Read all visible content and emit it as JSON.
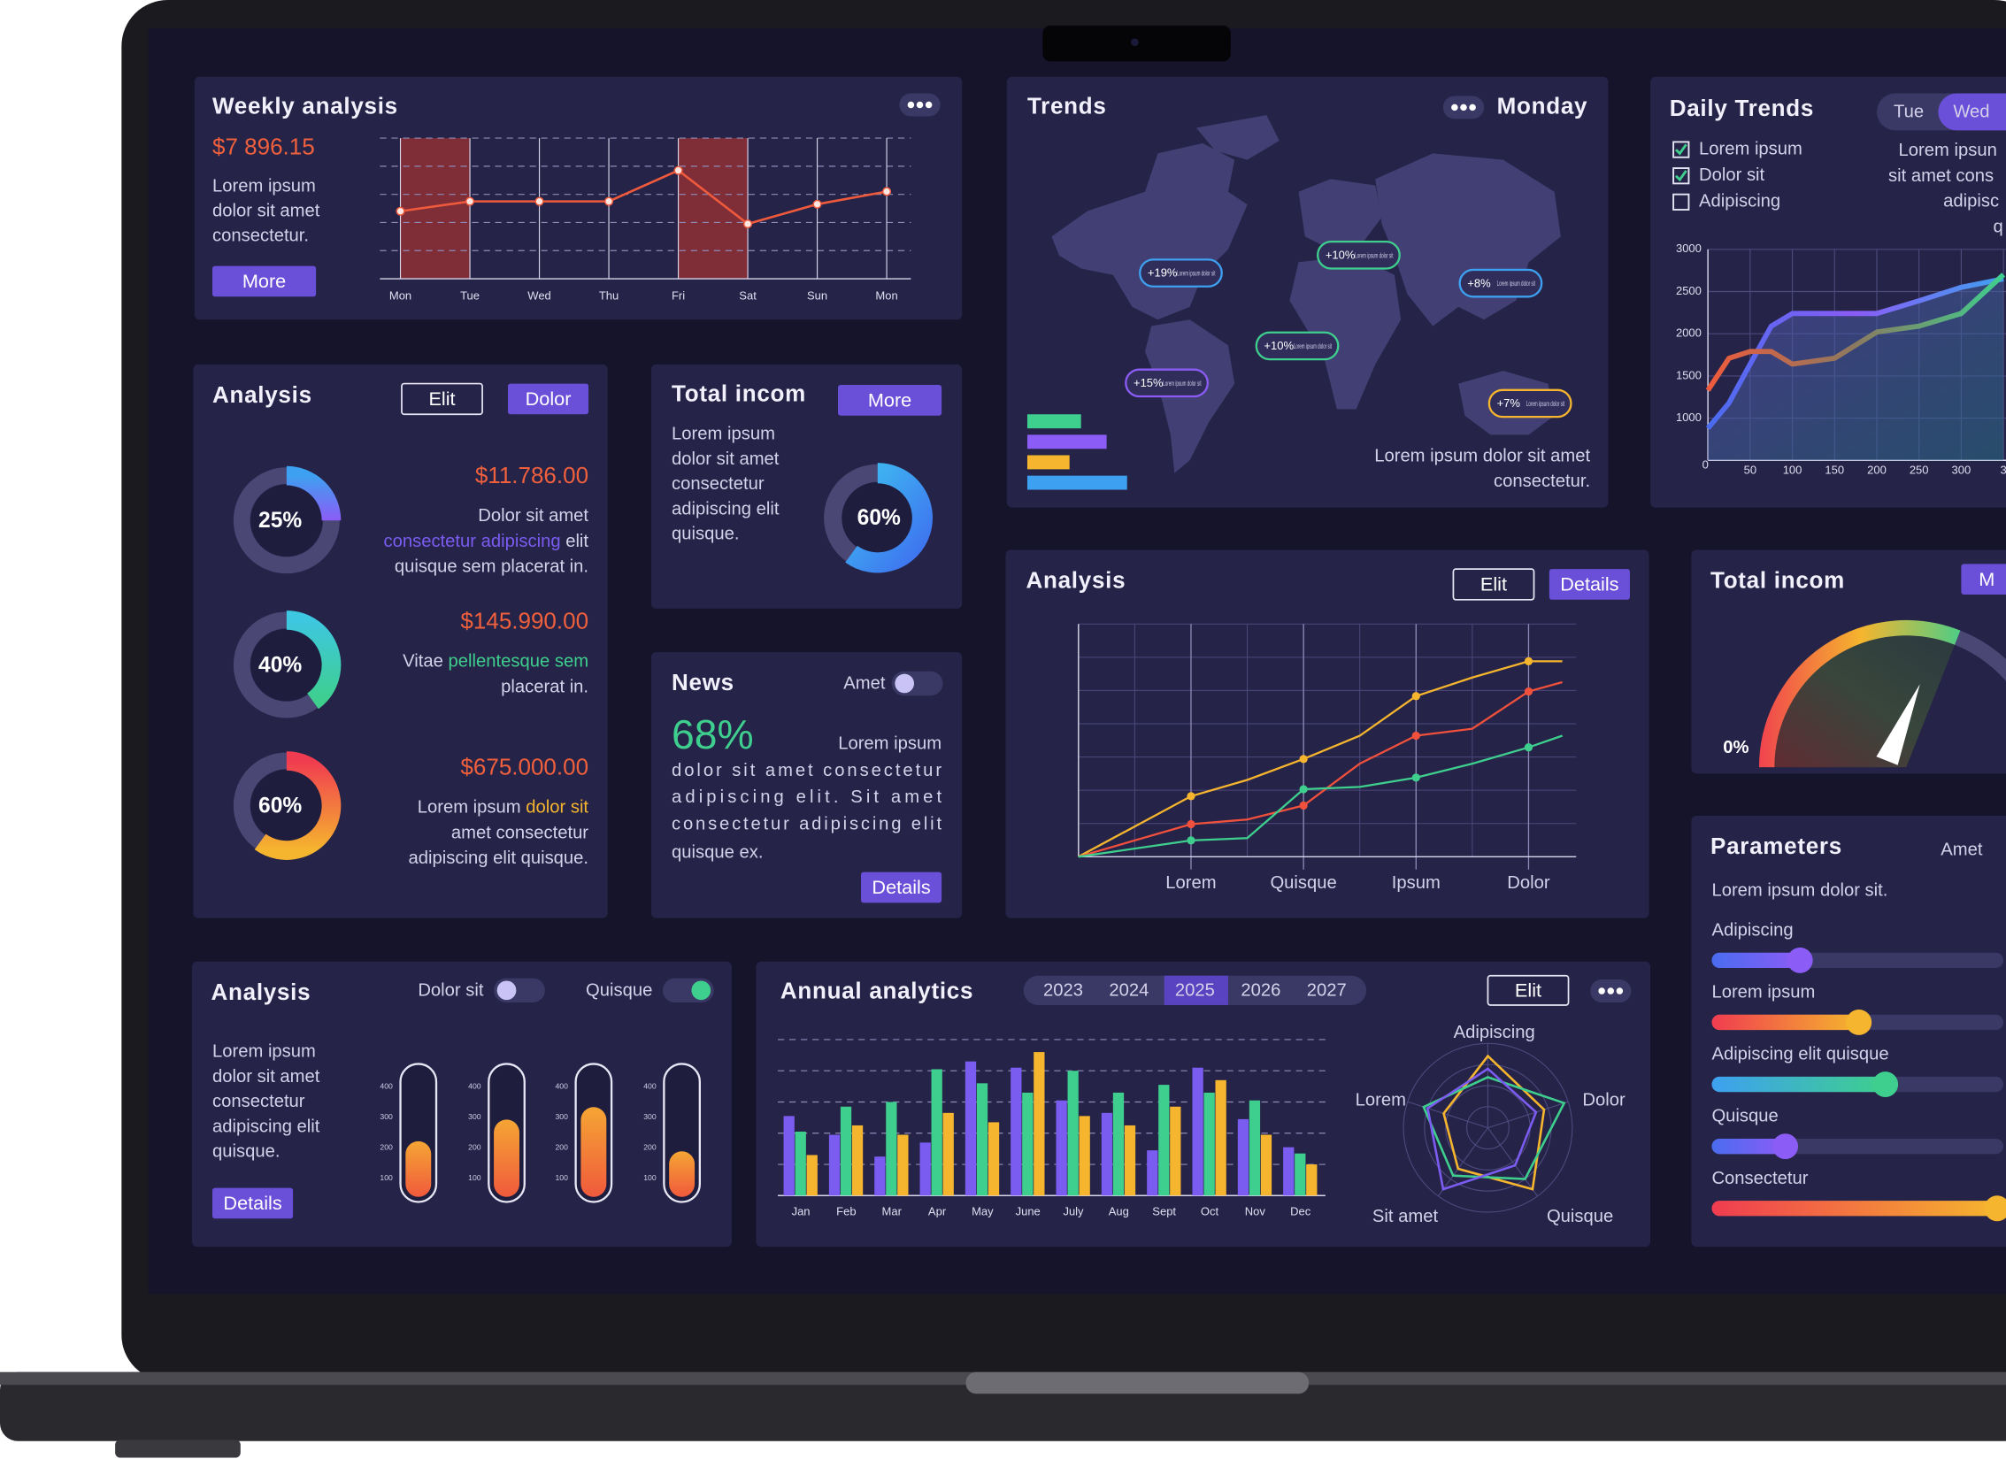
{
  "weekly": {
    "title": "Weekly analysis",
    "amount": "$7 896.15",
    "lines": [
      "Lorem ipsum",
      "dolor sit amet",
      "consectetur."
    ],
    "button": "More",
    "chart": {
      "type": "line",
      "categories": [
        "Mon",
        "Tue",
        "Wed",
        "Thu",
        "Fri",
        "Sat",
        "Sun",
        "Mon"
      ],
      "values": [
        48,
        55,
        55,
        55,
        77,
        39,
        53,
        62
      ],
      "color": "#f05a3c",
      "ylim": [
        0,
        100
      ],
      "yticks": [
        20,
        40,
        60,
        80,
        100
      ],
      "grid": true
    }
  },
  "analysis": {
    "title": "Analysis",
    "buttons": [
      "Elit",
      "Dolor"
    ],
    "chart": {
      "type": "donut",
      "values": [
        25,
        40,
        60
      ],
      "value_labels": [
        "25%",
        "40%",
        "60%"
      ],
      "colors": [
        [
          "#3ea0f0",
          "#8b5cf6"
        ],
        [
          "#3ec7e0",
          "#3ecf8e"
        ],
        [
          "#f03c50",
          "#f5b52e"
        ]
      ]
    },
    "items": [
      {
        "amount": "$11.786.00",
        "lines": [
          [
            "Dolor sit amet"
          ],
          [
            {
              "text": "consectetur adipiscing",
              "color": "#7b5cf0"
            },
            " elit"
          ],
          [
            "quisque sem placerat in."
          ]
        ]
      },
      {
        "amount": "$145.990.00",
        "lines": [
          [
            "Vitae ",
            {
              "text": "pellentesque sem",
              "color": "#3ecf8e"
            }
          ],
          [
            "placerat in."
          ]
        ]
      },
      {
        "amount": "$675.000.00",
        "lines": [
          [
            "Lorem ipsum ",
            {
              "text": "dolor sit",
              "color": "#f5b52e"
            }
          ],
          [
            "amet consectetur"
          ],
          [
            "adipiscing elit quisque."
          ]
        ]
      }
    ]
  },
  "total": {
    "title": "Total incom",
    "button": "More",
    "lines": [
      "Lorem ipsum",
      "dolor sit amet",
      "consectetur",
      "adipiscing elit",
      "quisque."
    ],
    "chart": {
      "type": "donut",
      "value": 60,
      "value_label": "60%",
      "colors": [
        "#3ec0f0",
        "#3e6ff0"
      ]
    }
  },
  "news": {
    "title": "News",
    "toggle": {
      "label": "Amet",
      "on": false
    },
    "stat": "68%",
    "lines": [
      "Lorem ipsum",
      "dolor sit amet consectetur",
      "adipiscing elit. Sit amet",
      "consectetur adipiscing elit",
      "quisque ex."
    ],
    "button": "Details"
  },
  "trends": {
    "title": "Trends",
    "day": "Monday",
    "tags": [
      {
        "label": "+19%",
        "text": "Lorem ipsum dolor sit",
        "color": "#3ea0f0"
      },
      {
        "label": "+10%",
        "text": "Lorem ipsum dolor sit",
        "color": "#3ecf8e"
      },
      {
        "label": "+8%",
        "text": "Lorem ipsum dolor sit",
        "color": "#3ea0f0"
      },
      {
        "label": "+10%",
        "text": "Lorem ipsum dolor sit",
        "color": "#3ecf8e"
      },
      {
        "label": "+15%",
        "text": "Lorem ipsum dolor sit",
        "color": "#8b5cf6"
      },
      {
        "label": "+7%",
        "text": "Lorem ipsum dolor sit",
        "color": "#f5b52e"
      }
    ],
    "bars": {
      "type": "bar",
      "values": [
        42,
        62,
        33,
        78
      ],
      "colors": [
        "#3ecf8e",
        "#8b5cf6",
        "#f5b52e",
        "#3ea0f0"
      ],
      "xlim": [
        0,
        80
      ]
    },
    "caption": [
      "Lorem ipsum dolor sit amet",
      "consectetur."
    ]
  },
  "daily": {
    "title": "Daily Trends",
    "tabs": [
      "Tue",
      "Wed"
    ],
    "active_tab": 1,
    "checks": [
      {
        "label": "Lorem ipsum",
        "checked": true
      },
      {
        "label": "Dolor sit",
        "checked": true
      },
      {
        "label": "Adipiscing",
        "checked": false
      }
    ],
    "side_text": [
      "Lorem ipsun",
      "sit amet cons",
      "adipisc",
      "q"
    ],
    "chart": {
      "type": "line",
      "origin": "0",
      "x": [
        0,
        25,
        50,
        75,
        100,
        150,
        200,
        250,
        300,
        350
      ],
      "xlim": [
        0,
        350
      ],
      "ylim": [
        500,
        3000
      ],
      "xticks": [
        50,
        100,
        150,
        200,
        250,
        300,
        {
          "value": 350,
          "label": "3"
        }
      ],
      "yticks": [
        1000,
        1500,
        2000,
        2500,
        3000
      ],
      "grid": true,
      "series": [
        {
          "color": "#4a6cf0",
          "values": [
            880,
            1180,
            1640,
            2090,
            2240,
            2240,
            2240,
            2390,
            2550,
            2650
          ]
        },
        {
          "color": "#f05a3c",
          "values": [
            1330,
            1710,
            1790,
            1790,
            1640,
            1710,
            2020,
            2090,
            2240,
            2700
          ]
        }
      ]
    }
  },
  "analysis2": {
    "title": "Analysis",
    "buttons": [
      "Elit",
      "Details"
    ],
    "chart": {
      "type": "line",
      "x": [
        0,
        1,
        1.5,
        2,
        2.5,
        3,
        3.5,
        4,
        4.3
      ],
      "xlim": [
        0,
        4.4
      ],
      "ylim": [
        0,
        100
      ],
      "xticks": [
        {
          "value": 1,
          "label": "Lorem"
        },
        {
          "value": 2,
          "label": "Quisque"
        },
        {
          "value": 3,
          "label": "Ipsum"
        },
        {
          "value": 4,
          "label": "Dolor"
        }
      ],
      "grid": true,
      "series": [
        {
          "color": "#f5b52e",
          "values": [
            0,
            26,
            33,
            42,
            52,
            69,
            77,
            84,
            84
          ]
        },
        {
          "color": "#f0503c",
          "values": [
            0,
            14,
            16,
            22,
            40,
            52,
            55,
            71,
            75
          ]
        },
        {
          "color": "#3ecf8e",
          "values": [
            0,
            7,
            8,
            29,
            30,
            34,
            40,
            47,
            52
          ]
        }
      ]
    }
  },
  "total2": {
    "title": "Total incom",
    "button": "M",
    "chart": {
      "type": "gauge",
      "value": 62,
      "ylim": [
        0,
        100
      ],
      "ticks": [
        {
          "value": 0,
          "label": "0%"
        }
      ]
    }
  },
  "parameters": {
    "title": "Parameters",
    "side": "Amet",
    "subtitle": "Lorem ipsum dolor sit.",
    "sliders": {
      "type": "slider",
      "categories": [
        "Adipiscing",
        "Lorem ipsum",
        "Adipiscing elit quisque",
        "Quisque",
        "Consectetur"
      ],
      "values": [
        30,
        50,
        59,
        25,
        97
      ],
      "xlim": [
        0,
        100
      ],
      "colors": [
        [
          "#4a6cf0",
          "#8b5cf6"
        ],
        [
          "#f03c50",
          "#f5b52e"
        ],
        [
          "#3ea0f0",
          "#3ecf8e"
        ],
        [
          "#4a6cf0",
          "#8b5cf6"
        ],
        [
          "#f03c50",
          "#f5b52e"
        ]
      ]
    }
  },
  "analysis3": {
    "title": "Analysis",
    "toggles": [
      {
        "label": "Dolor sit",
        "on": false
      },
      {
        "label": "Quisque",
        "on": true
      }
    ],
    "lines": [
      "Lorem ipsum",
      "dolor sit amet",
      "consectetur",
      "adipiscing elit",
      "quisque."
    ],
    "button": "Details",
    "chart": {
      "type": "thermometer",
      "values": [
        221,
        292,
        333,
        188
      ],
      "ylim": [
        30,
        475
      ],
      "yticks": [
        100,
        200,
        300,
        400
      ],
      "colors": [
        "#f5a534",
        "#f05a3c"
      ]
    }
  },
  "annual": {
    "title": "Annual analytics",
    "years": [
      "2023",
      "2024",
      "2025",
      "2026",
      "2027"
    ],
    "active_year": 2,
    "button": "Elit",
    "chart": {
      "type": "bar",
      "categories": [
        "Jan",
        "Feb",
        "Mar",
        "Apr",
        "May",
        "June",
        "July",
        "Aug",
        "Sept",
        "Oct",
        "Nov",
        "Dec"
      ],
      "ylim": [
        0,
        100
      ],
      "yticks": [
        20,
        40,
        60,
        80,
        100
      ],
      "grid": true,
      "series": [
        {
          "color": "#7b5cf0",
          "values": [
            51,
            39,
            25,
            34,
            86,
            82,
            61,
            53,
            29,
            82,
            49,
            31
          ]
        },
        {
          "color": "#3ecf8e",
          "values": [
            41,
            57,
            60,
            81,
            72,
            66,
            80,
            66,
            71,
            66,
            61,
            27
          ]
        },
        {
          "color": "#f5b52e",
          "values": [
            26,
            45,
            39,
            53,
            47,
            92,
            51,
            45,
            57,
            74,
            39,
            20
          ]
        }
      ]
    },
    "radar": {
      "type": "radar",
      "categories": [
        "Adipiscing",
        "Dolor",
        "Quisque",
        "Sit amet",
        "Lorem"
      ],
      "ylim": [
        0,
        100
      ],
      "series": [
        {
          "color": "#f5b52e",
          "values": [
            85,
            70,
            90,
            60,
            55
          ]
        },
        {
          "color": "#3ecf8e",
          "values": [
            60,
            95,
            75,
            70,
            80
          ]
        },
        {
          "color": "#7b5cf0",
          "values": [
            70,
            60,
            55,
            90,
            75
          ]
        }
      ]
    }
  }
}
